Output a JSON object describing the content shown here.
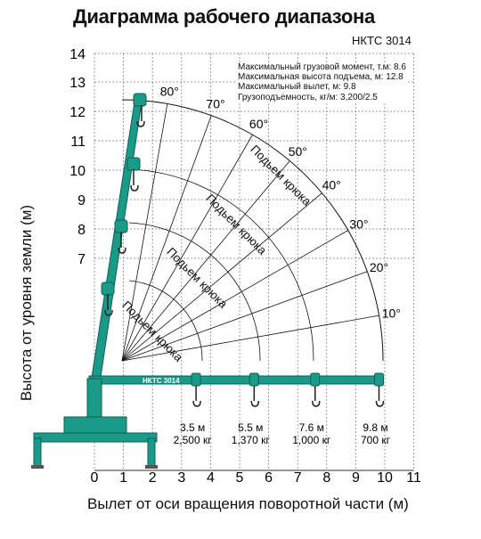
{
  "title": "Диаграмма рабочего диапазона",
  "model": "НКТС 3014",
  "specs": [
    "Максимальный грузовой момент, т.м: 8.6",
    "Максимальная высота подъема, м: 12.8",
    "Максимальный вылет, м: 9.8",
    "Грузоподъемность, кг/м: 3,200/2.5"
  ],
  "colors": {
    "crane": "#1a9b8a",
    "crane_dark": "#0e5f55",
    "grid": "#777777",
    "arc": "#111111"
  },
  "chart_data": {
    "type": "other",
    "xlabel": "Вылет от оси вращения поворотной части (м)",
    "ylabel": "Высота от уровня земли (м)",
    "x_ticks": [
      "0",
      "1",
      "2",
      "3",
      "4",
      "5",
      "6",
      "7",
      "8",
      "9",
      "10",
      "11"
    ],
    "y_ticks": [
      "7",
      "8",
      "9",
      "10",
      "11",
      "12",
      "13",
      "14"
    ],
    "xlim": [
      0,
      11
    ],
    "angle_labels": [
      {
        "text": "80°",
        "angle": 80
      },
      {
        "text": "70°",
        "angle": 70
      },
      {
        "text": "60°",
        "angle": 60
      },
      {
        "text": "50°",
        "angle": 50
      },
      {
        "text": "40°",
        "angle": 40
      },
      {
        "text": "30°",
        "angle": 30
      },
      {
        "text": "20°",
        "angle": 20
      },
      {
        "text": "10°",
        "angle": 10
      }
    ],
    "hook_label": "Подьем крюка",
    "boom_length_label": "НКТС 3014",
    "capacities": [
      {
        "reach": "3.5 м",
        "load": "2,500 кг",
        "x": 3.5
      },
      {
        "reach": "5.5 м",
        "load": "1,370 кг",
        "x": 5.5
      },
      {
        "reach": "7.6 м",
        "load": "1,000 кг",
        "x": 7.6
      },
      {
        "reach": "9.8 м",
        "load": "700 кг",
        "x": 9.8
      }
    ]
  }
}
